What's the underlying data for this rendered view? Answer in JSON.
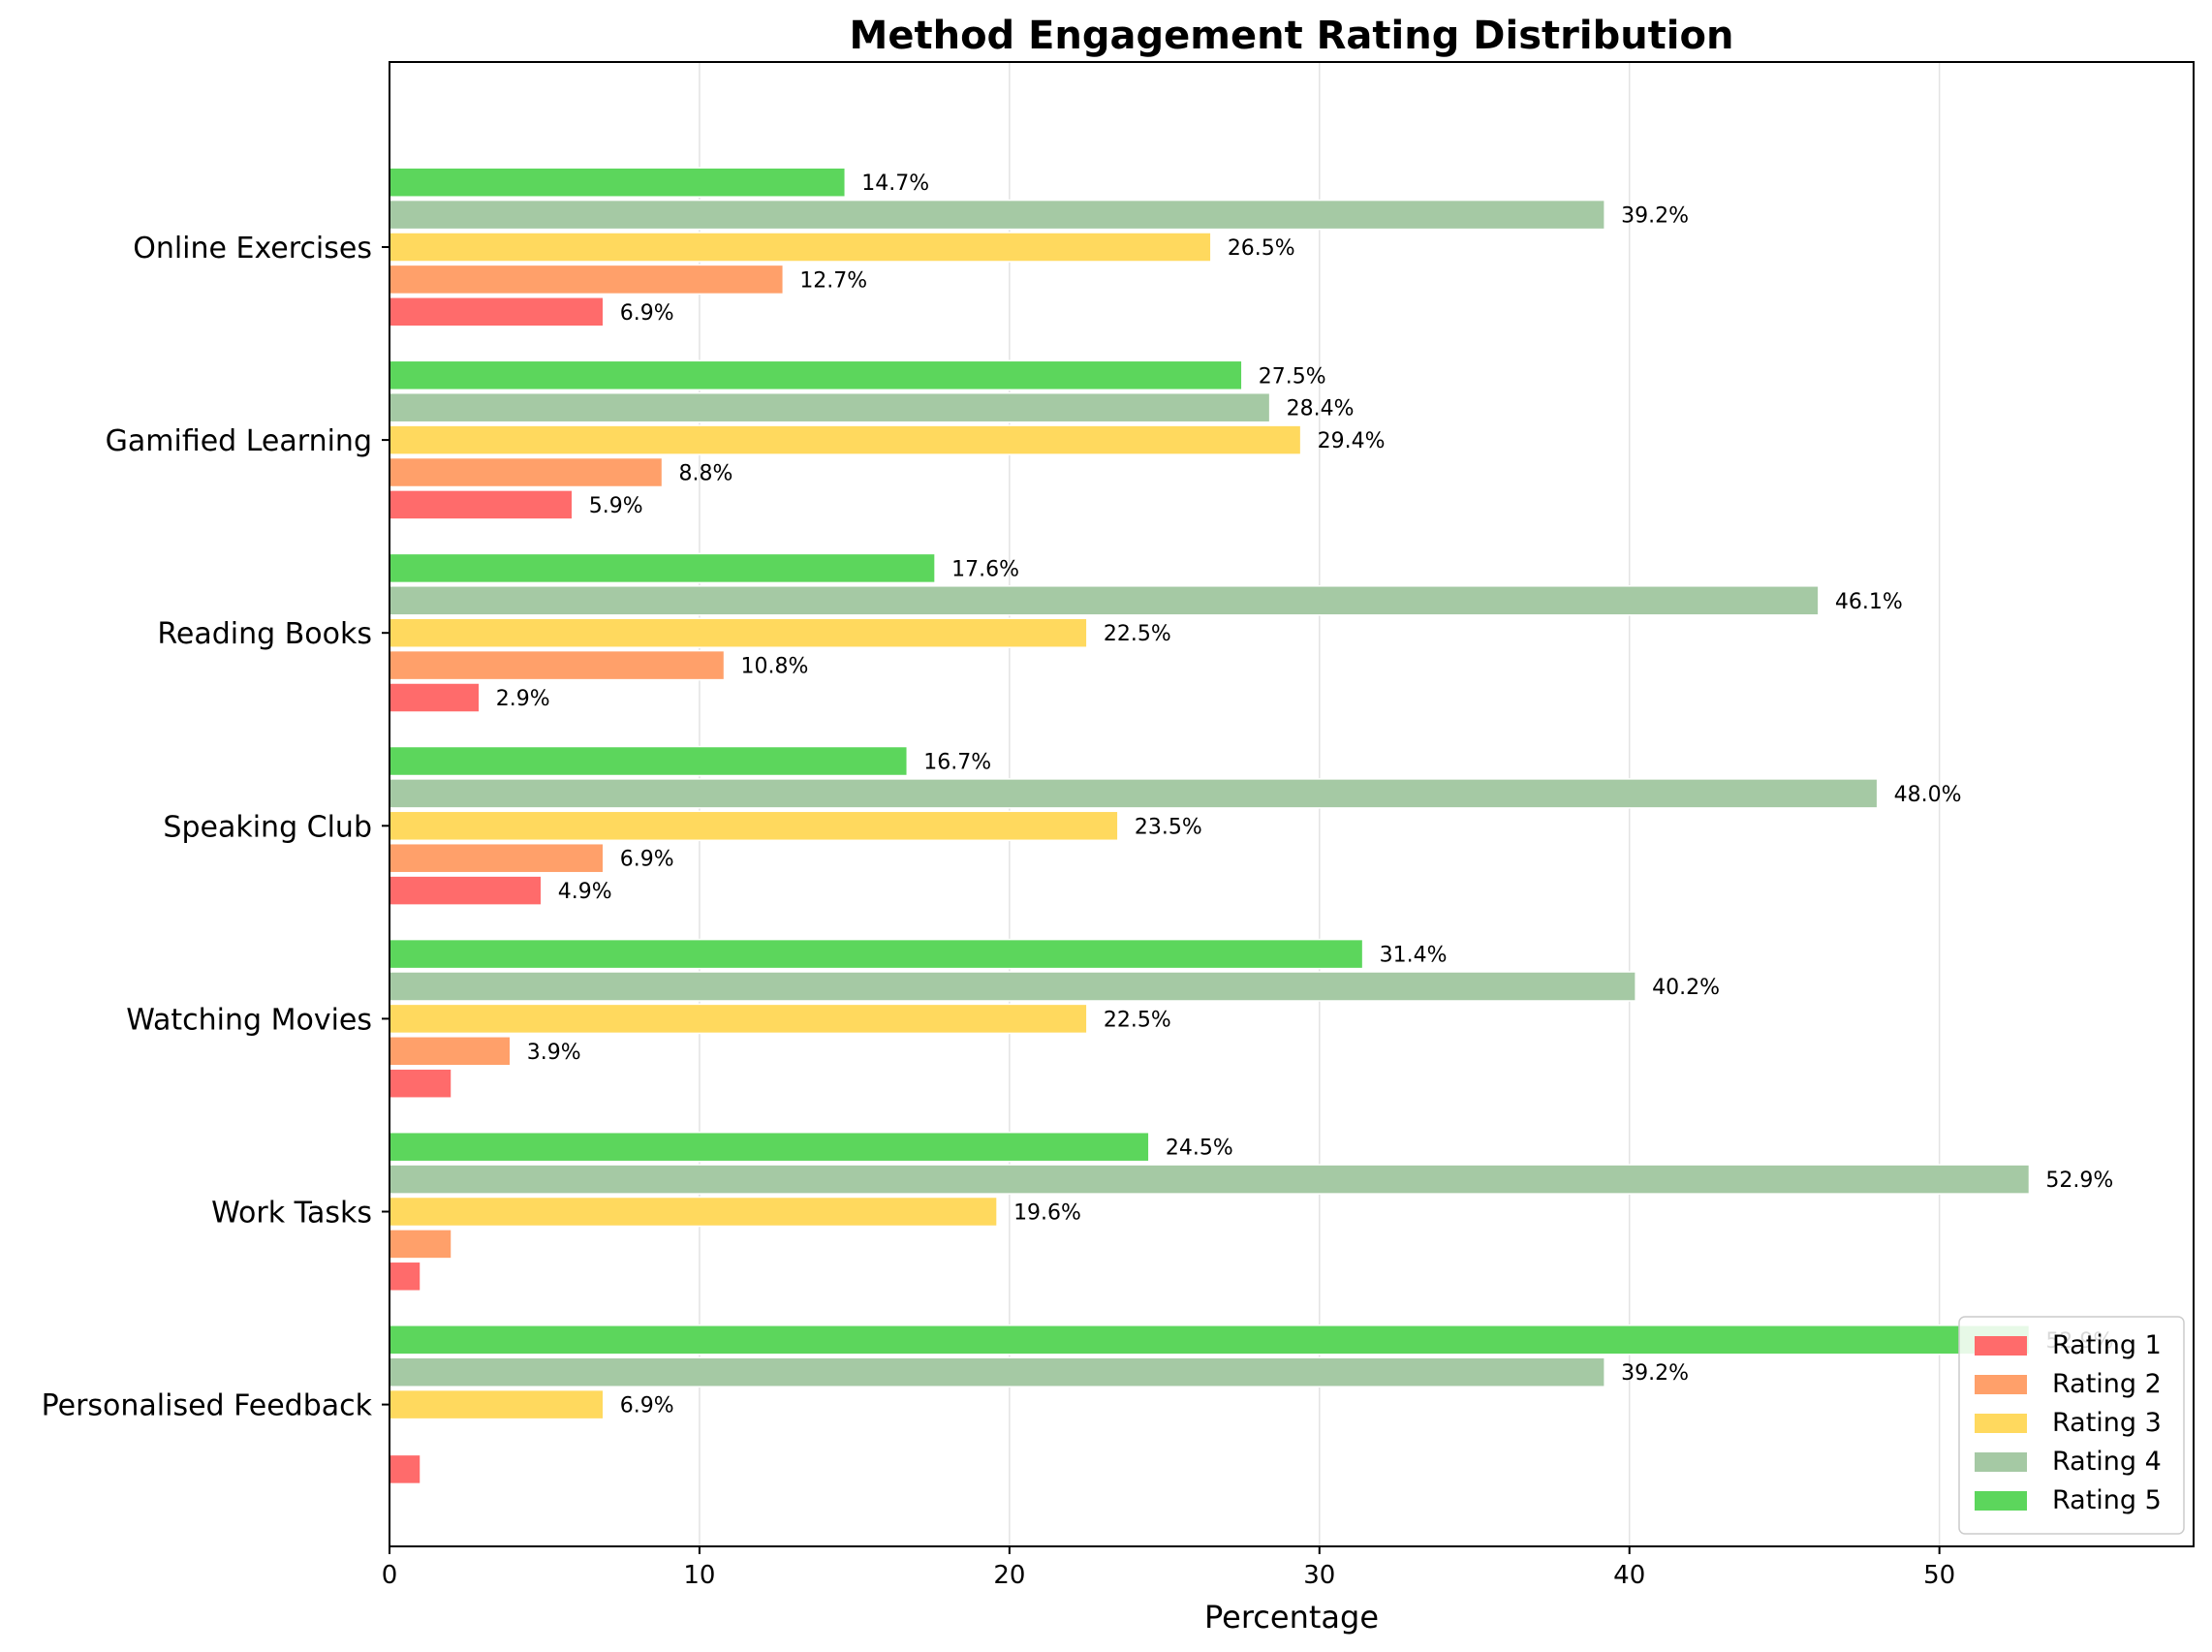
{
  "chart_data": {
    "type": "bar",
    "orientation": "horizontal",
    "title": "Method Engagement Rating Distribution",
    "xlabel": "Percentage",
    "ylabel": "",
    "xlim": [
      0,
      58.2
    ],
    "xticks": [
      0,
      10,
      20,
      30,
      40,
      50
    ],
    "grid": "vertical",
    "legend_position": "bottom-right",
    "categories": [
      "Online Exercises",
      "Gamified Learning",
      "Reading Books",
      "Speaking Club",
      "Watching Movies",
      "Work Tasks",
      "Personalised Feedback"
    ],
    "series": [
      {
        "name": "Rating 1",
        "color": "#ff6b6b",
        "values": [
          6.9,
          5.9,
          2.9,
          4.9,
          2.0,
          1.0,
          1.0
        ],
        "labels": [
          "6.9%",
          "5.9%",
          "2.9%",
          "4.9%",
          "",
          "",
          ""
        ]
      },
      {
        "name": "Rating 2",
        "color": "#ffa06a",
        "values": [
          12.7,
          8.8,
          10.8,
          6.9,
          3.9,
          2.0,
          0.0
        ],
        "labels": [
          "12.7%",
          "8.8%",
          "10.8%",
          "6.9%",
          "3.9%",
          "",
          ""
        ]
      },
      {
        "name": "Rating 3",
        "color": "#ffd95e",
        "values": [
          26.5,
          29.4,
          22.5,
          23.5,
          22.5,
          19.6,
          6.9
        ],
        "labels": [
          "26.5%",
          "29.4%",
          "22.5%",
          "23.5%",
          "22.5%",
          "19.6%",
          "6.9%"
        ]
      },
      {
        "name": "Rating 4",
        "color": "#a5c9a4",
        "values": [
          39.2,
          28.4,
          46.1,
          48.0,
          40.2,
          52.9,
          39.2
        ],
        "labels": [
          "39.2%",
          "28.4%",
          "46.1%",
          "48.0%",
          "40.2%",
          "52.9%",
          "39.2%"
        ]
      },
      {
        "name": "Rating 5",
        "color": "#5cd65c",
        "values": [
          14.7,
          27.5,
          17.6,
          16.7,
          31.4,
          24.5,
          52.9
        ],
        "labels": [
          "14.7%",
          "27.5%",
          "17.6%",
          "16.7%",
          "31.4%",
          "24.5%",
          "52.9%"
        ]
      }
    ]
  }
}
